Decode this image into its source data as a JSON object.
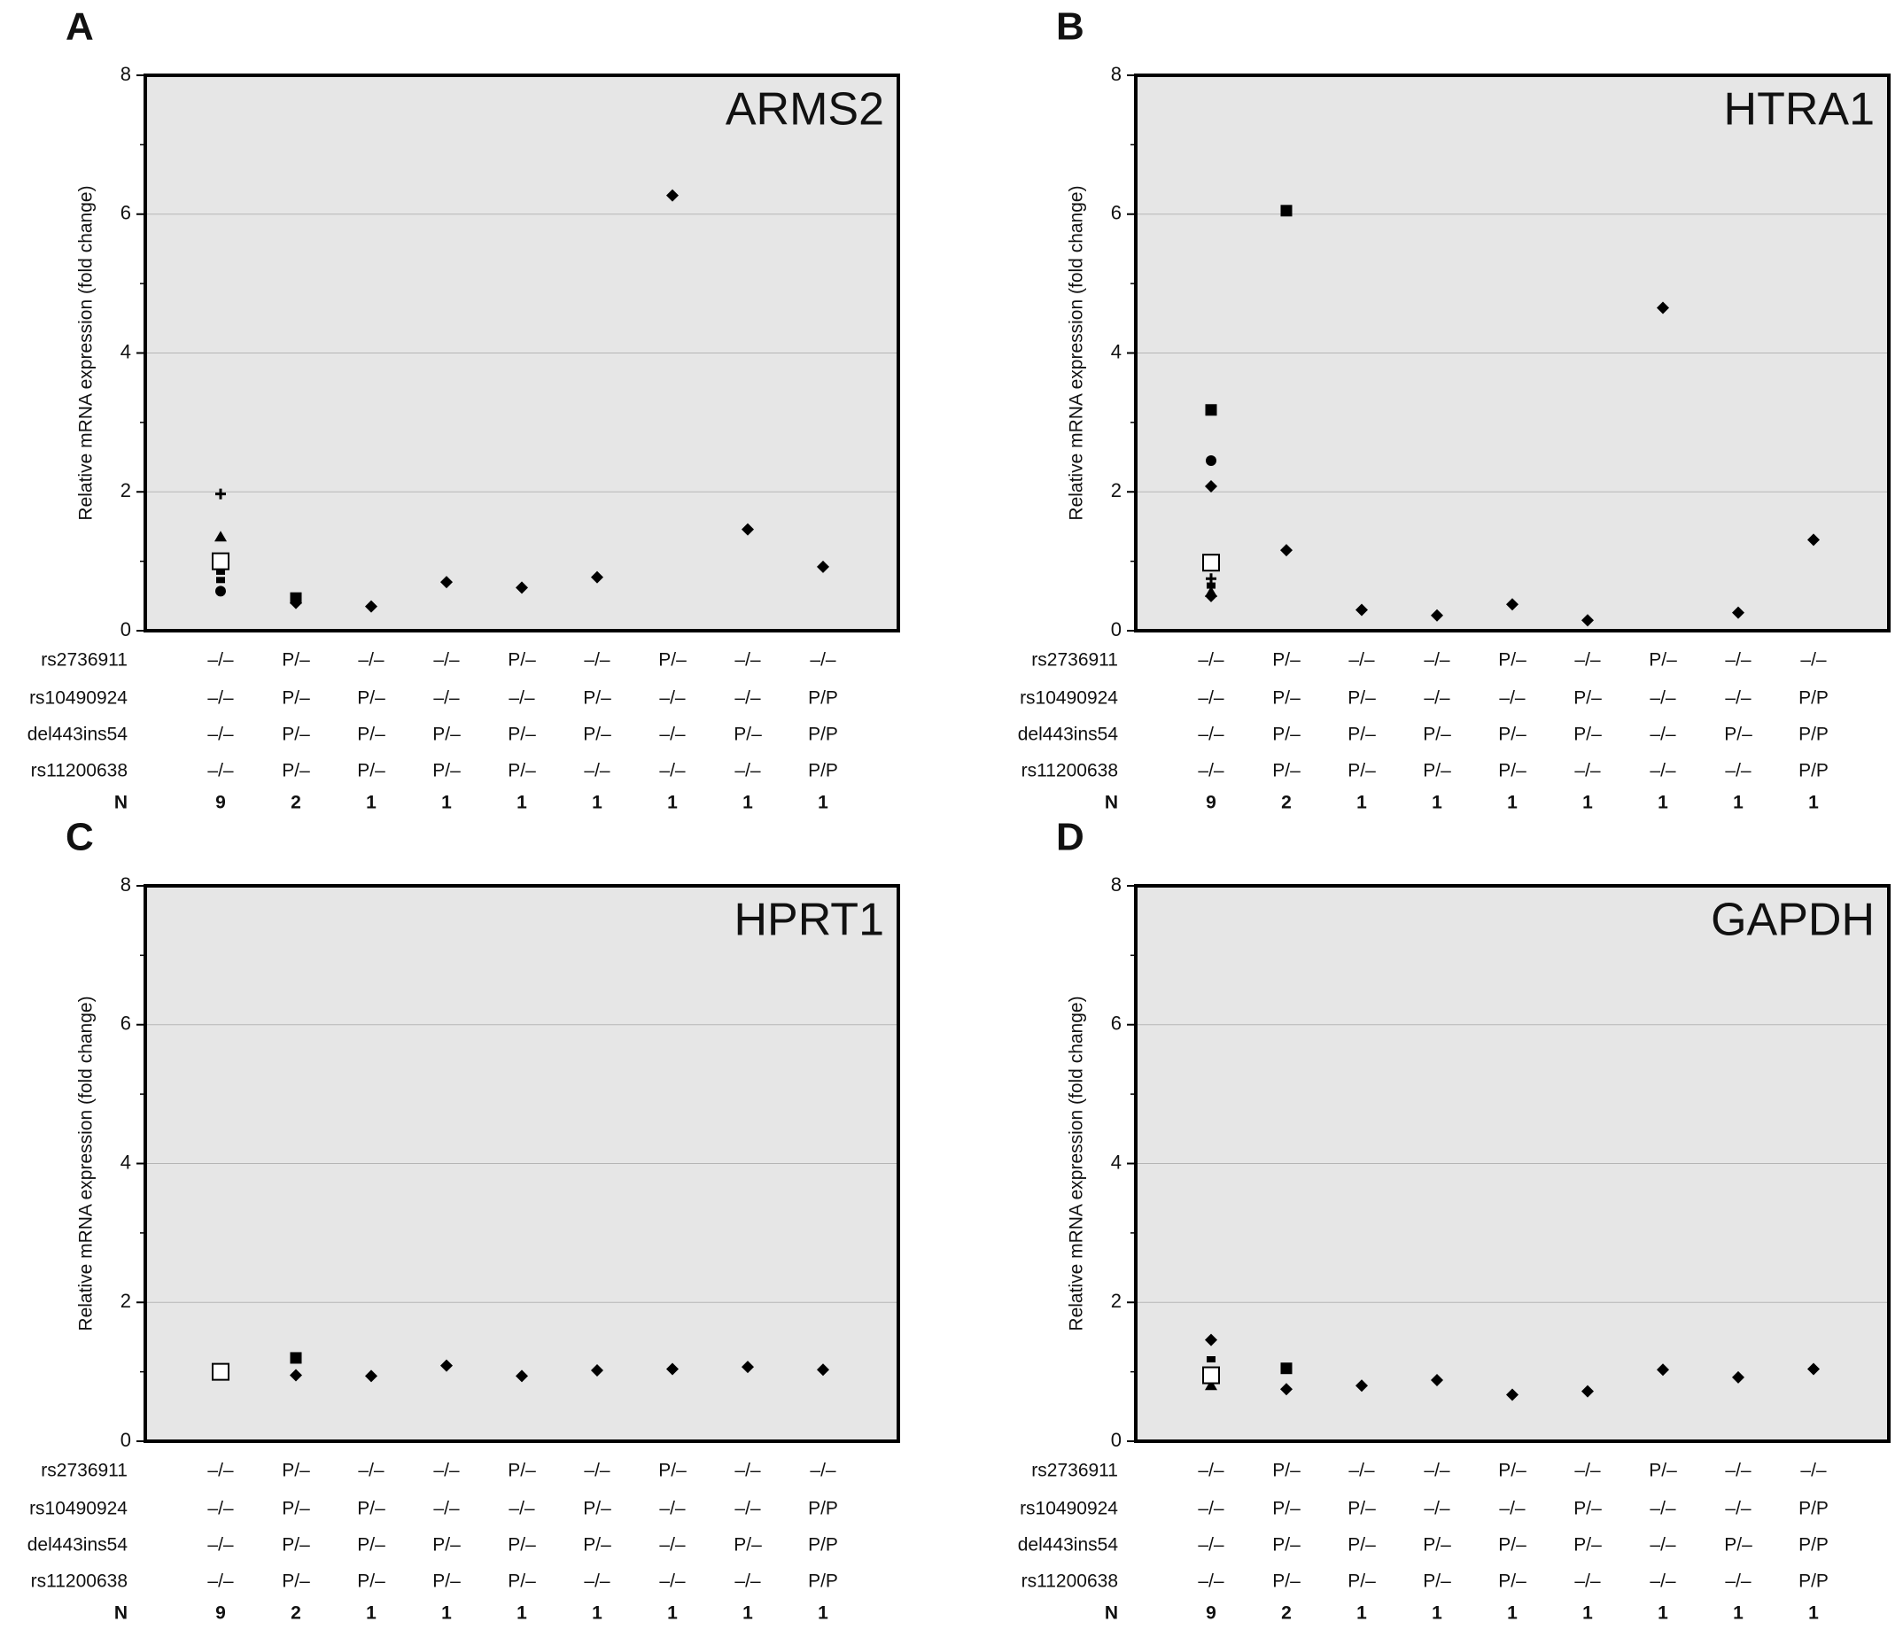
{
  "chart_data": [
    {
      "type": "scatter",
      "panel": "A",
      "title": "ARMS2",
      "y_label": "Relative mRNA expression (fold change)",
      "ylim": [
        0,
        8
      ],
      "yticks": [
        0,
        2,
        4,
        6,
        8
      ],
      "grid": true,
      "categories": [
        null,
        null,
        null,
        null,
        null,
        null,
        null,
        null,
        null
      ],
      "genotype_rows": [
        {
          "label": "rs2736911",
          "values": [
            "–/–",
            "P/–",
            "–/–",
            "–/–",
            "P/–",
            "–/–",
            "P/–",
            "–/–",
            "–/–"
          ]
        },
        {
          "label": "rs10490924",
          "values": [
            "–/–",
            "P/–",
            "P/–",
            "–/–",
            "–/–",
            "P/–",
            "–/–",
            "–/–",
            "P/P"
          ]
        },
        {
          "label": "del443ins54",
          "values": [
            "–/–",
            "P/–",
            "P/–",
            "P/–",
            "P/–",
            "P/–",
            "–/–",
            "P/–",
            "P/P"
          ]
        },
        {
          "label": "rs11200638",
          "values": [
            "–/–",
            "P/–",
            "P/–",
            "P/–",
            "P/–",
            "–/–",
            "–/–",
            "–/–",
            "P/P"
          ]
        }
      ],
      "n_label": "N",
      "n": [
        9,
        2,
        1,
        1,
        1,
        1,
        1,
        1,
        1
      ],
      "series": [
        {
          "marker": "diamond",
          "color": "#000000",
          "values": [
            null,
            0.4,
            0.35,
            0.7,
            0.62,
            0.77,
            6.27,
            1.46,
            0.92
          ]
        },
        {
          "marker": "square",
          "color": "#000000",
          "values": [
            null,
            0.47,
            null,
            null,
            null,
            null,
            null,
            null,
            null
          ]
        },
        {
          "marker": "plus",
          "color": "#000000",
          "values": [
            1.97,
            null,
            null,
            null,
            null,
            null,
            null,
            null,
            null
          ]
        },
        {
          "marker": "triangle",
          "color": "#000000",
          "values": [
            1.35,
            null,
            null,
            null,
            null,
            null,
            null,
            null,
            null
          ]
        },
        {
          "marker": "dash",
          "color": "#000000",
          "values": [
            0.85,
            null,
            null,
            null,
            null,
            null,
            null,
            null,
            null
          ]
        },
        {
          "marker": "dash",
          "color": "#000000",
          "values": [
            0.73,
            null,
            null,
            null,
            null,
            null,
            null,
            null,
            null
          ]
        },
        {
          "marker": "circle",
          "color": "#000000",
          "values": [
            0.57,
            null,
            null,
            null,
            null,
            null,
            null,
            null,
            null
          ]
        },
        {
          "marker": "open-square",
          "color": "#000000",
          "values": [
            1.0,
            null,
            null,
            null,
            null,
            null,
            null,
            null,
            null
          ]
        }
      ]
    },
    {
      "type": "scatter",
      "panel": "B",
      "title": "HTRA1",
      "y_label": "Relative mRNA expression (fold change)",
      "ylim": [
        0,
        8
      ],
      "yticks": [
        0,
        2,
        4,
        6,
        8
      ],
      "grid": true,
      "categories": [
        null,
        null,
        null,
        null,
        null,
        null,
        null,
        null,
        null
      ],
      "genotype_rows": [
        {
          "label": "rs2736911",
          "values": [
            "–/–",
            "P/–",
            "–/–",
            "–/–",
            "P/–",
            "–/–",
            "P/–",
            "–/–",
            "–/–"
          ]
        },
        {
          "label": "rs10490924",
          "values": [
            "–/–",
            "P/–",
            "P/–",
            "–/–",
            "–/–",
            "P/–",
            "–/–",
            "–/–",
            "P/P"
          ]
        },
        {
          "label": "del443ins54",
          "values": [
            "–/–",
            "P/–",
            "P/–",
            "P/–",
            "P/–",
            "P/–",
            "–/–",
            "P/–",
            "P/P"
          ]
        },
        {
          "label": "rs11200638",
          "values": [
            "–/–",
            "P/–",
            "P/–",
            "P/–",
            "P/–",
            "–/–",
            "–/–",
            "–/–",
            "P/P"
          ]
        }
      ],
      "n_label": "N",
      "n": [
        9,
        2,
        1,
        1,
        1,
        1,
        1,
        1,
        1
      ],
      "series": [
        {
          "marker": "diamond",
          "color": "#000000",
          "values": [
            2.08,
            1.16,
            0.3,
            0.22,
            0.38,
            0.15,
            4.65,
            0.26,
            1.31
          ]
        },
        {
          "marker": "diamond",
          "color": "#000000",
          "values": [
            0.5,
            null,
            null,
            null,
            null,
            null,
            null,
            null,
            null
          ]
        },
        {
          "marker": "square",
          "color": "#000000",
          "values": [
            3.18,
            6.05,
            null,
            null,
            null,
            null,
            null,
            null,
            null
          ]
        },
        {
          "marker": "circle",
          "color": "#000000",
          "values": [
            2.45,
            null,
            null,
            null,
            null,
            null,
            null,
            null,
            null
          ]
        },
        {
          "marker": "plus",
          "color": "#000000",
          "values": [
            0.75,
            null,
            null,
            null,
            null,
            null,
            null,
            null,
            null
          ]
        },
        {
          "marker": "dash",
          "color": "#000000",
          "values": [
            0.65,
            null,
            null,
            null,
            null,
            null,
            null,
            null,
            null
          ]
        },
        {
          "marker": "triangle",
          "color": "#000000",
          "values": [
            0.55,
            null,
            null,
            null,
            null,
            null,
            null,
            null,
            null
          ]
        },
        {
          "marker": "open-square",
          "color": "#000000",
          "values": [
            0.98,
            null,
            null,
            null,
            null,
            null,
            null,
            null,
            null
          ]
        }
      ]
    },
    {
      "type": "scatter",
      "panel": "C",
      "title": "HPRT1",
      "y_label": "Relative mRNA expression (fold change)",
      "ylim": [
        0,
        8
      ],
      "yticks": [
        0,
        2,
        4,
        6,
        8
      ],
      "grid": true,
      "categories": [
        null,
        null,
        null,
        null,
        null,
        null,
        null,
        null,
        null
      ],
      "genotype_rows": [
        {
          "label": "rs2736911",
          "values": [
            "–/–",
            "P/–",
            "–/–",
            "–/–",
            "P/–",
            "–/–",
            "P/–",
            "–/–",
            "–/–"
          ]
        },
        {
          "label": "rs10490924",
          "values": [
            "–/–",
            "P/–",
            "P/–",
            "–/–",
            "–/–",
            "P/–",
            "–/–",
            "–/–",
            "P/P"
          ]
        },
        {
          "label": "del443ins54",
          "values": [
            "–/–",
            "P/–",
            "P/–",
            "P/–",
            "P/–",
            "P/–",
            "–/–",
            "P/–",
            "P/P"
          ]
        },
        {
          "label": "rs11200638",
          "values": [
            "–/–",
            "P/–",
            "P/–",
            "P/–",
            "P/–",
            "–/–",
            "–/–",
            "–/–",
            "P/P"
          ]
        }
      ],
      "n_label": "N",
      "n": [
        9,
        2,
        1,
        1,
        1,
        1,
        1,
        1,
        1
      ],
      "series": [
        {
          "marker": "diamond",
          "color": "#000000",
          "values": [
            null,
            0.95,
            0.94,
            1.09,
            0.94,
            1.02,
            1.04,
            1.07,
            1.03
          ]
        },
        {
          "marker": "square",
          "color": "#000000",
          "values": [
            null,
            1.2,
            null,
            null,
            null,
            null,
            null,
            null,
            null
          ]
        },
        {
          "marker": "open-square",
          "color": "#000000",
          "values": [
            1.0,
            null,
            null,
            null,
            null,
            null,
            null,
            null,
            null
          ]
        }
      ]
    },
    {
      "type": "scatter",
      "panel": "D",
      "title": "GAPDH",
      "y_label": "Relative mRNA expression (fold change)",
      "ylim": [
        0,
        8
      ],
      "yticks": [
        0,
        2,
        4,
        6,
        8
      ],
      "grid": true,
      "categories": [
        null,
        null,
        null,
        null,
        null,
        null,
        null,
        null,
        null
      ],
      "genotype_rows": [
        {
          "label": "rs2736911",
          "values": [
            "–/–",
            "P/–",
            "–/–",
            "–/–",
            "P/–",
            "–/–",
            "P/–",
            "–/–",
            "–/–"
          ]
        },
        {
          "label": "rs10490924",
          "values": [
            "–/–",
            "P/–",
            "P/–",
            "–/–",
            "–/–",
            "P/–",
            "–/–",
            "–/–",
            "P/P"
          ]
        },
        {
          "label": "del443ins54",
          "values": [
            "–/–",
            "P/–",
            "P/–",
            "P/–",
            "P/–",
            "P/–",
            "–/–",
            "P/–",
            "P/P"
          ]
        },
        {
          "label": "rs11200638",
          "values": [
            "–/–",
            "P/–",
            "P/–",
            "P/–",
            "P/–",
            "–/–",
            "–/–",
            "–/–",
            "P/P"
          ]
        }
      ],
      "n_label": "N",
      "n": [
        9,
        2,
        1,
        1,
        1,
        1,
        1,
        1,
        1
      ],
      "series": [
        {
          "marker": "diamond",
          "color": "#000000",
          "values": [
            1.46,
            0.75,
            0.8,
            0.88,
            0.67,
            0.72,
            1.03,
            0.92,
            1.04
          ]
        },
        {
          "marker": "square",
          "color": "#000000",
          "values": [
            null,
            1.05,
            null,
            null,
            null,
            null,
            null,
            null,
            null
          ]
        },
        {
          "marker": "dash",
          "color": "#000000",
          "values": [
            1.18,
            null,
            null,
            null,
            null,
            null,
            null,
            null,
            null
          ]
        },
        {
          "marker": "triangle",
          "color": "#000000",
          "values": [
            0.8,
            null,
            null,
            null,
            null,
            null,
            null,
            null,
            null
          ]
        },
        {
          "marker": "open-square",
          "color": "#000000",
          "values": [
            0.95,
            null,
            null,
            null,
            null,
            null,
            null,
            null,
            null
          ]
        }
      ]
    }
  ]
}
